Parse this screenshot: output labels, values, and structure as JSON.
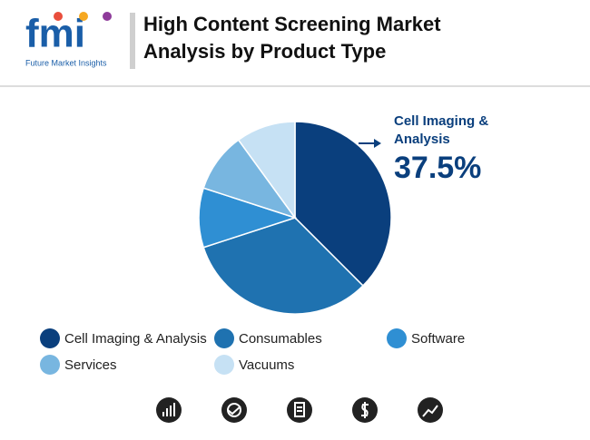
{
  "header": {
    "logo": "fmi",
    "brand": "Future Market Insights"
  },
  "chart_data": {
    "type": "pie",
    "title": "High Content Screening Market Analysis by Product Type",
    "categories": [
      "Cell Imaging & Analysis",
      "Consumables",
      "Software",
      "Services",
      "Vacuums"
    ],
    "values": [
      37.5,
      32.5,
      10,
      10,
      10
    ],
    "value_labels": [
      "37.5%",
      null,
      null,
      null,
      null
    ],
    "colors": [
      "#0a3f7d",
      "#1f72b0",
      "#2f8fd3",
      "#78b6e0",
      "#c6e1f4"
    ],
    "legend": "bottom"
  }
}
